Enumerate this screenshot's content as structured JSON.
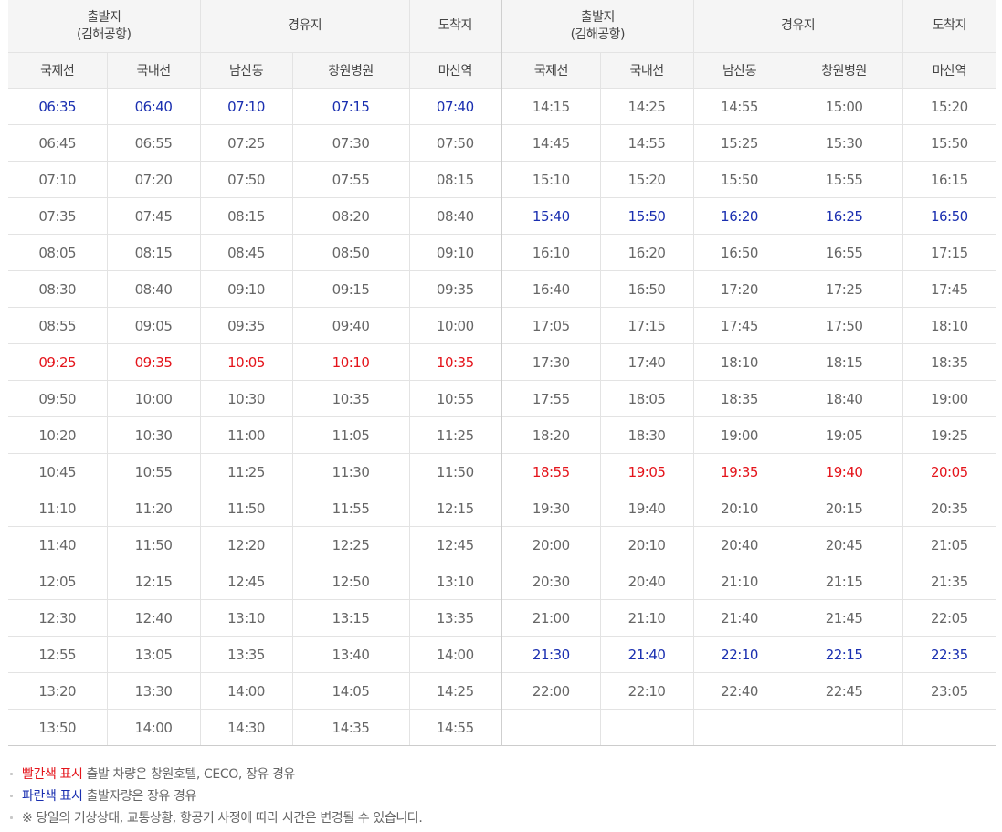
{
  "header": {
    "left": {
      "origin": "출발지",
      "origin_sub": "(김해공항)",
      "via": "경유지",
      "dest": "도착지"
    },
    "right": {
      "origin": "출발지",
      "origin_sub": "(김해공항)",
      "via": "경유지",
      "dest": "도착지"
    },
    "columns": [
      "국제선",
      "국내선",
      "남산동",
      "창원병원",
      "마산역",
      "국제선",
      "국내선",
      "남산동",
      "창원병원",
      "마산역"
    ]
  },
  "rows": [
    {
      "c": [
        "06:35",
        "06:40",
        "07:10",
        "07:15",
        "07:40",
        "14:15",
        "14:25",
        "14:55",
        "15:00",
        "15:20"
      ],
      "l": "blue",
      "r": ""
    },
    {
      "c": [
        "06:45",
        "06:55",
        "07:25",
        "07:30",
        "07:50",
        "14:45",
        "14:55",
        "15:25",
        "15:30",
        "15:50"
      ],
      "l": "",
      "r": ""
    },
    {
      "c": [
        "07:10",
        "07:20",
        "07:50",
        "07:55",
        "08:15",
        "15:10",
        "15:20",
        "15:50",
        "15:55",
        "16:15"
      ],
      "l": "",
      "r": ""
    },
    {
      "c": [
        "07:35",
        "07:45",
        "08:15",
        "08:20",
        "08:40",
        "15:40",
        "15:50",
        "16:20",
        "16:25",
        "16:50"
      ],
      "l": "",
      "r": "blue"
    },
    {
      "c": [
        "08:05",
        "08:15",
        "08:45",
        "08:50",
        "09:10",
        "16:10",
        "16:20",
        "16:50",
        "16:55",
        "17:15"
      ],
      "l": "",
      "r": ""
    },
    {
      "c": [
        "08:30",
        "08:40",
        "09:10",
        "09:15",
        "09:35",
        "16:40",
        "16:50",
        "17:20",
        "17:25",
        "17:45"
      ],
      "l": "",
      "r": ""
    },
    {
      "c": [
        "08:55",
        "09:05",
        "09:35",
        "09:40",
        "10:00",
        "17:05",
        "17:15",
        "17:45",
        "17:50",
        "18:10"
      ],
      "l": "",
      "r": ""
    },
    {
      "c": [
        "09:25",
        "09:35",
        "10:05",
        "10:10",
        "10:35",
        "17:30",
        "17:40",
        "18:10",
        "18:15",
        "18:35"
      ],
      "l": "red",
      "r": ""
    },
    {
      "c": [
        "09:50",
        "10:00",
        "10:30",
        "10:35",
        "10:55",
        "17:55",
        "18:05",
        "18:35",
        "18:40",
        "19:00"
      ],
      "l": "",
      "r": ""
    },
    {
      "c": [
        "10:20",
        "10:30",
        "11:00",
        "11:05",
        "11:25",
        "18:20",
        "18:30",
        "19:00",
        "19:05",
        "19:25"
      ],
      "l": "",
      "r": ""
    },
    {
      "c": [
        "10:45",
        "10:55",
        "11:25",
        "11:30",
        "11:50",
        "18:55",
        "19:05",
        "19:35",
        "19:40",
        "20:05"
      ],
      "l": "",
      "r": "red"
    },
    {
      "c": [
        "11:10",
        "11:20",
        "11:50",
        "11:55",
        "12:15",
        "19:30",
        "19:40",
        "20:10",
        "20:15",
        "20:35"
      ],
      "l": "",
      "r": ""
    },
    {
      "c": [
        "11:40",
        "11:50",
        "12:20",
        "12:25",
        "12:45",
        "20:00",
        "20:10",
        "20:40",
        "20:45",
        "21:05"
      ],
      "l": "",
      "r": ""
    },
    {
      "c": [
        "12:05",
        "12:15",
        "12:45",
        "12:50",
        "13:10",
        "20:30",
        "20:40",
        "21:10",
        "21:15",
        "21:35"
      ],
      "l": "",
      "r": ""
    },
    {
      "c": [
        "12:30",
        "12:40",
        "13:10",
        "13:15",
        "13:35",
        "21:00",
        "21:10",
        "21:40",
        "21:45",
        "22:05"
      ],
      "l": "",
      "r": ""
    },
    {
      "c": [
        "12:55",
        "13:05",
        "13:35",
        "13:40",
        "14:00",
        "21:30",
        "21:40",
        "22:10",
        "22:15",
        "22:35"
      ],
      "l": "",
      "r": "blue"
    },
    {
      "c": [
        "13:20",
        "13:30",
        "14:00",
        "14:05",
        "14:25",
        "22:00",
        "22:10",
        "22:40",
        "22:45",
        "23:05"
      ],
      "l": "",
      "r": ""
    },
    {
      "c": [
        "13:50",
        "14:00",
        "14:30",
        "14:35",
        "14:55",
        "",
        "",
        "",
        "",
        ""
      ],
      "l": "",
      "r": ""
    }
  ],
  "notes": {
    "red_label": "빨간색 표시",
    "red_text": " 출발 차량은 창원호텔, CECO, 장유 경유",
    "blue_label": "파란색 표시",
    "blue_text": " 출발자량은 장유 경유",
    "notice": "※ 당일의 기상상태, 교통상황, 항공기 사정에 따라 시간은 변경될 수 있습니다."
  },
  "colors": {
    "red": "#e4141b",
    "blue": "#1a2fb0",
    "text": "#666666",
    "header_bg": "#f5f5f5",
    "border": "#e3e3e3"
  }
}
